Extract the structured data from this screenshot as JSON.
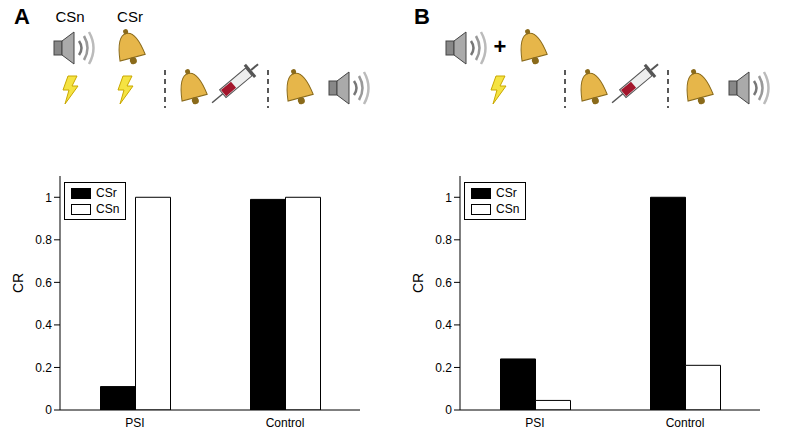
{
  "chart_data": [
    {
      "type": "bar",
      "title": "A",
      "annotations": [
        "CSn",
        "CSr"
      ],
      "categories": [
        "PSI",
        "Control"
      ],
      "series": [
        {
          "name": "CSr",
          "color": "#000000",
          "values": [
            0.11,
            0.99
          ]
        },
        {
          "name": "CSn",
          "color": "#ffffff",
          "values": [
            1,
            1
          ]
        }
      ],
      "y_label": "CR",
      "ylim": [
        0,
        1.1
      ],
      "yticks": [
        0,
        0.2,
        0.4,
        0.6,
        0.8,
        1
      ],
      "legend": "upper left"
    },
    {
      "type": "bar",
      "title": "B",
      "annotations": [
        "+"
      ],
      "categories": [
        "PSI",
        "Control"
      ],
      "series": [
        {
          "name": "CSr",
          "color": "#000000",
          "values": [
            0.24,
            1
          ]
        },
        {
          "name": "CSn",
          "color": "#ffffff",
          "values": [
            0.045,
            0.21
          ]
        }
      ],
      "y_label": "CR",
      "ylim": [
        0,
        1.1
      ],
      "yticks": [
        0,
        0.2,
        0.4,
        0.6,
        0.8,
        1
      ],
      "legend": "upper left"
    }
  ]
}
